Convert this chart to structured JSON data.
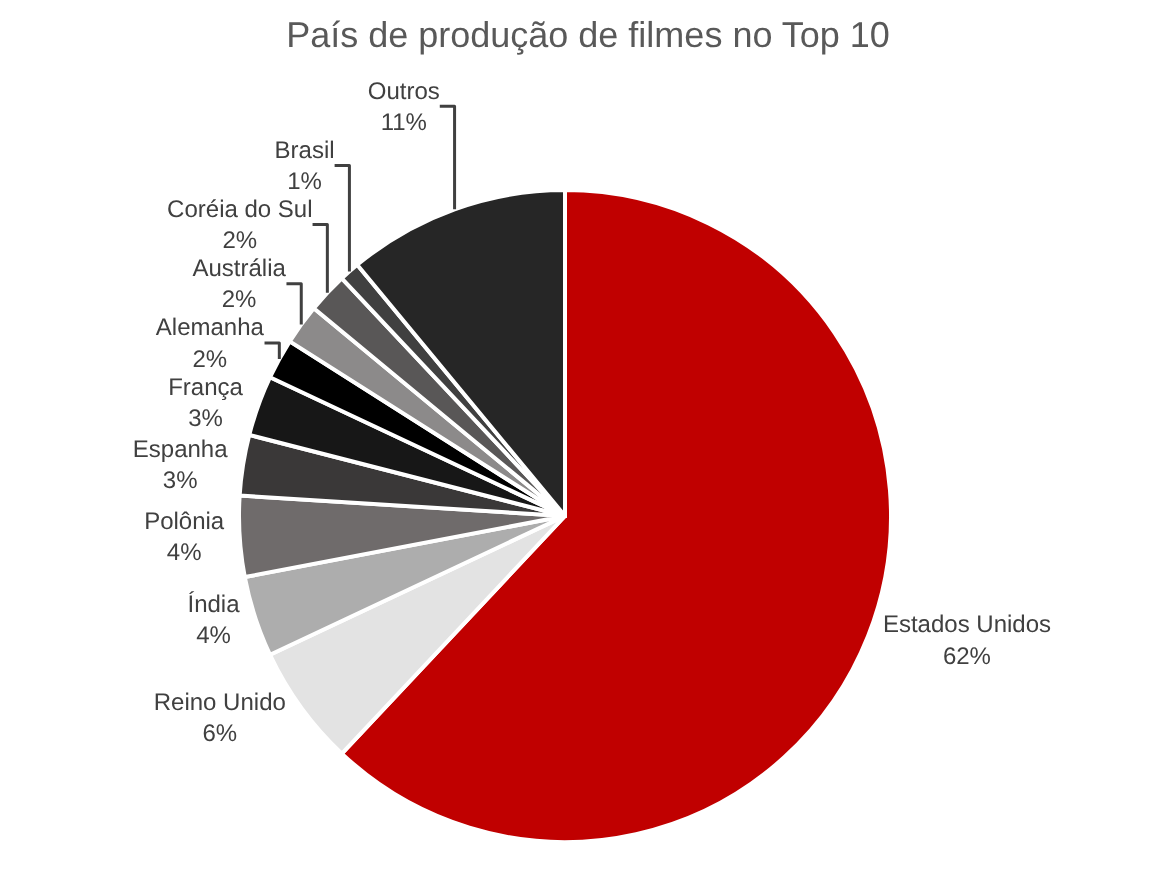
{
  "chart_data": {
    "type": "pie",
    "title": "País de produção de filmes no Top 10",
    "categories": [
      "Estados Unidos",
      "Reino Unido",
      "Índia",
      "Polônia",
      "Espanha",
      "França",
      "Alemanha",
      "Austrália",
      "Coréia do Sul",
      "Brasil",
      "Outros"
    ],
    "values": [
      62,
      6,
      4,
      4,
      3,
      3,
      2,
      2,
      2,
      1,
      11
    ],
    "value_labels": [
      "62%",
      "6%",
      "4%",
      "4%",
      "3%",
      "3%",
      "2%",
      "2%",
      "2%",
      "1%",
      "11%"
    ],
    "colors": [
      "#c00000",
      "#e3e3e3",
      "#adadad",
      "#6f6b6b",
      "#3a3838",
      "#171717",
      "#000000",
      "#8c8a8a",
      "#595757",
      "#404040",
      "#262626"
    ],
    "legend": false
  }
}
